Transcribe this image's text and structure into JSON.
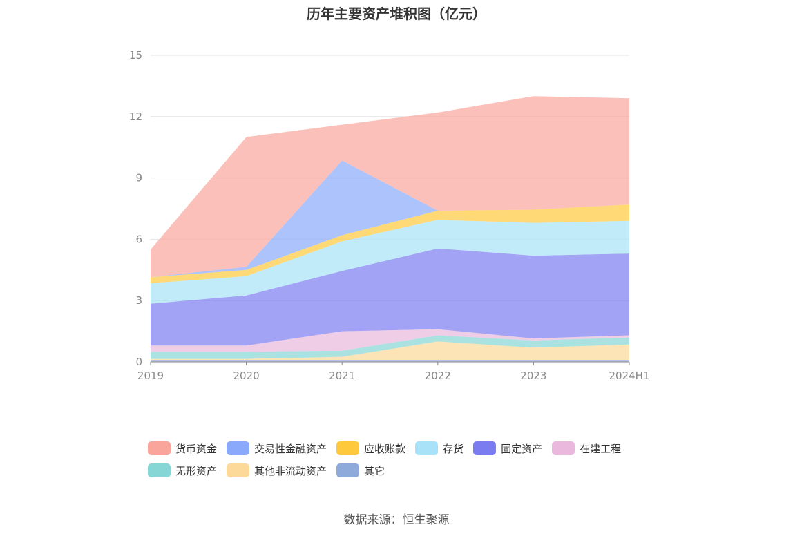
{
  "chart_data": {
    "type": "area",
    "stacked": true,
    "title": "历年主要资产堆积图（亿元）",
    "categories": [
      "2019",
      "2020",
      "2021",
      "2022",
      "2023",
      "2024H1"
    ],
    "ylim": [
      0,
      15
    ],
    "yticks": [
      "0",
      "3",
      "6",
      "9",
      "12",
      "15"
    ],
    "grid": true,
    "legend_position": "bottom",
    "series": [
      {
        "name": "其它",
        "color": "#8eaadb",
        "values": [
          0.1,
          0.1,
          0.1,
          0.1,
          0.1,
          0.1
        ]
      },
      {
        "name": "其他非流动资产",
        "color": "#fcd899",
        "values": [
          0.05,
          0.05,
          0.15,
          0.9,
          0.6,
          0.75
        ]
      },
      {
        "name": "无形资产",
        "color": "#86d6d6",
        "values": [
          0.35,
          0.35,
          0.3,
          0.3,
          0.35,
          0.35
        ]
      },
      {
        "name": "在建工程",
        "color": "#e9b8dc",
        "values": [
          0.3,
          0.3,
          0.95,
          0.3,
          0.1,
          0.1
        ]
      },
      {
        "name": "固定资产",
        "color": "#7b7cf0",
        "values": [
          2.05,
          2.45,
          2.95,
          3.95,
          4.05,
          4.0
        ]
      },
      {
        "name": "存货",
        "color": "#a8e2f8",
        "values": [
          1.0,
          0.95,
          1.45,
          1.4,
          1.6,
          1.6
        ]
      },
      {
        "name": "应收账款",
        "color": "#ffc93c",
        "values": [
          0.3,
          0.3,
          0.3,
          0.45,
          0.65,
          0.8
        ]
      },
      {
        "name": "交易性金融资产",
        "color": "#8aa9fb",
        "values": [
          0.0,
          0.15,
          3.65,
          0.0,
          0.0,
          0.0
        ]
      },
      {
        "name": "货币资金",
        "color": "#faa59b",
        "values": [
          1.35,
          6.35,
          1.75,
          4.8,
          5.55,
          5.2
        ]
      }
    ]
  },
  "legend_order": [
    "货币资金",
    "交易性金融资产",
    "应收账款",
    "存货",
    "固定资产",
    "在建工程",
    "无形资产",
    "其他非流动资产",
    "其它"
  ],
  "source_text": "数据来源：恒生聚源"
}
